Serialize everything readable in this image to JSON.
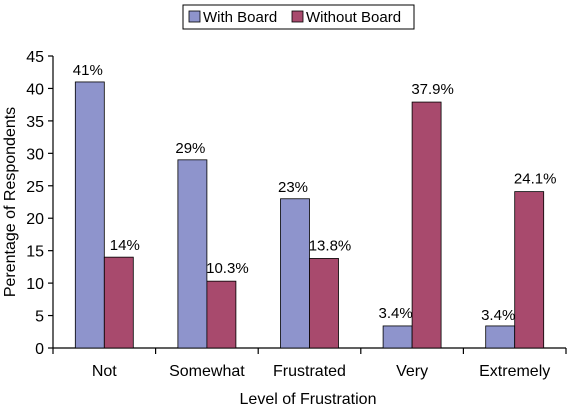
{
  "chart_data": {
    "type": "bar",
    "title": "",
    "xlabel": "Level of Frustration",
    "ylabel": "Perentage of Respondents",
    "ylim": [
      0,
      45
    ],
    "yticks": [
      0,
      5,
      10,
      15,
      20,
      25,
      30,
      35,
      40,
      45
    ],
    "categories": [
      "Not",
      "Somewhat",
      "Frustrated",
      "Very",
      "Extremely"
    ],
    "series": [
      {
        "name": "With Board",
        "color": "#8e94cc",
        "values": [
          41,
          29,
          23,
          3.4,
          3.4
        ],
        "labels": [
          "41%",
          "29%",
          "23%",
          "3.4%",
          "3.4%"
        ]
      },
      {
        "name": "Without Board",
        "color": "#a84a6d",
        "values": [
          14,
          10.3,
          13.8,
          37.9,
          24.1
        ],
        "labels": [
          "14%",
          "10.3%",
          "13.8%",
          "37.9%",
          "24.1%"
        ]
      }
    ],
    "legend_position": "top-center",
    "grid": false
  }
}
